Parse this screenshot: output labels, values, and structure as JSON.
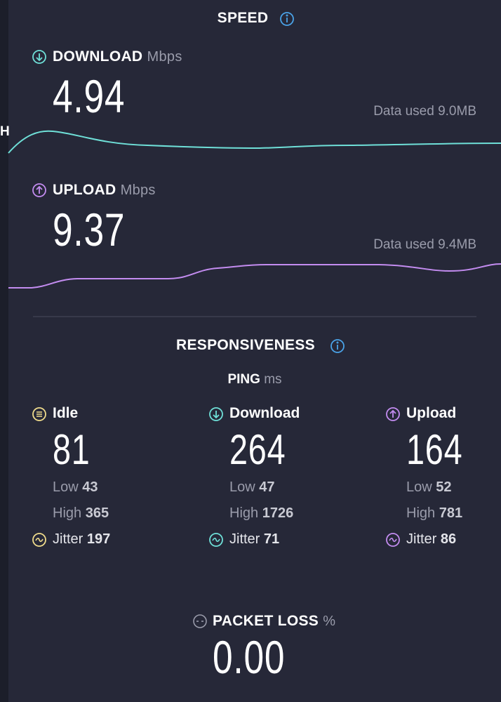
{
  "speed": {
    "title": "SPEED",
    "edge_label": "H",
    "download": {
      "label": "DOWNLOAD",
      "unit": "Mbps",
      "value": "4.94",
      "data_used": "Data used 9.0MB"
    },
    "upload": {
      "label": "UPLOAD",
      "unit": "Mbps",
      "value": "9.37",
      "data_used": "Data used 9.4MB"
    }
  },
  "responsiveness": {
    "title": "RESPONSIVENESS",
    "ping": {
      "label": "PING",
      "unit": "ms"
    },
    "columns": [
      {
        "label": "Idle",
        "value": "81",
        "low_label": "Low",
        "low": "43",
        "high_label": "High",
        "high": "365",
        "jitter_label": "Jitter",
        "jitter": "197"
      },
      {
        "label": "Download",
        "value": "264",
        "low_label": "Low",
        "low": "47",
        "high_label": "High",
        "high": "1726",
        "jitter_label": "Jitter",
        "jitter": "71"
      },
      {
        "label": "Upload",
        "value": "164",
        "low_label": "Low",
        "low": "52",
        "high_label": "High",
        "high": "781",
        "jitter_label": "Jitter",
        "jitter": "86"
      }
    ]
  },
  "packet_loss": {
    "label": "PACKET LOSS",
    "unit": "%",
    "value": "0.00"
  }
}
